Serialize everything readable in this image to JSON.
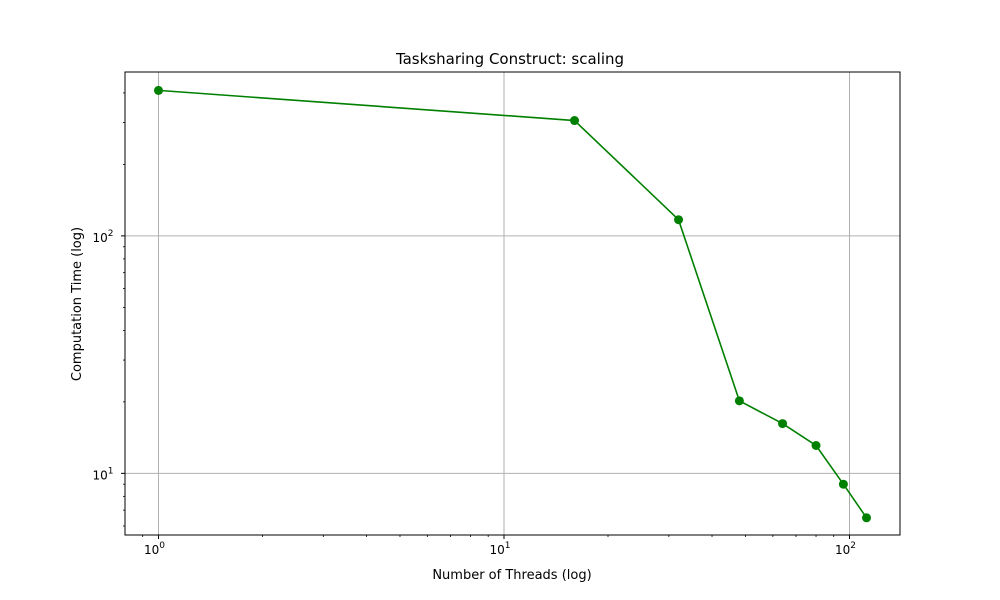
{
  "chart_data": {
    "type": "line",
    "title": "Tasksharing Construct: scaling",
    "xlabel": "Number of Threads (log)",
    "ylabel": "Computation Time (log)",
    "x_scale": "log",
    "y_scale": "log",
    "xlim": [
      0.8,
      140
    ],
    "ylim": [
      5.5,
      490
    ],
    "grid": true,
    "x_ticks": [
      {
        "value": 1,
        "base": "10",
        "exp": "0"
      },
      {
        "value": 10,
        "base": "10",
        "exp": "1"
      },
      {
        "value": 100,
        "base": "10",
        "exp": "2"
      }
    ],
    "y_ticks": [
      {
        "value": 10,
        "base": "10",
        "exp": "1"
      },
      {
        "value": 100,
        "base": "10",
        "exp": "2"
      }
    ],
    "series": [
      {
        "color": "#008000",
        "marker": "circle",
        "x": [
          1,
          16,
          32,
          48,
          64,
          80,
          96,
          112
        ],
        "y": [
          410,
          306,
          117,
          20.2,
          16.2,
          13.1,
          9.0,
          6.5
        ]
      }
    ]
  }
}
